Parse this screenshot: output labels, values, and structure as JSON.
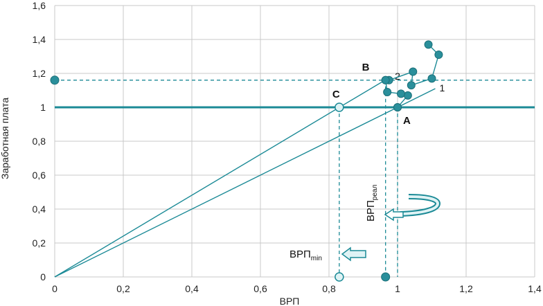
{
  "chart_data": {
    "type": "line",
    "title": "",
    "xlabel": "ВРП",
    "ylabel": "Заработная плата",
    "xlim": [
      0,
      1.4
    ],
    "ylim": [
      0,
      1.6
    ],
    "x_ticks": [
      "0",
      "0,2",
      "0,4",
      "0,6",
      "0,8",
      "1",
      "1,2",
      "1,4"
    ],
    "y_ticks": [
      "0",
      "0,2",
      "0,4",
      "0,6",
      "0,8",
      "1",
      "1,2",
      "1,4",
      "1,6"
    ],
    "grid": true,
    "colors": {
      "main": "#1b8a96",
      "point_fill": "#2a8f9b",
      "light_fill": "#dff3f5",
      "grid": "#c8c8c8"
    },
    "horizontal_lines": [
      {
        "y": 1.0,
        "style": "solid"
      },
      {
        "y": 1.16,
        "style": "dashed"
      }
    ],
    "vertical_dashed": [
      {
        "x": 0.83,
        "y_top": 1.0
      },
      {
        "x": 0.965,
        "y_top": 1.16
      },
      {
        "x": 1.0,
        "y_top": 1.0
      }
    ],
    "series": [
      {
        "type": "trajectory",
        "points": [
          {
            "x": 1.0,
            "y": 1.0
          },
          {
            "x": 1.03,
            "y": 1.07
          },
          {
            "x": 1.01,
            "y": 1.08
          },
          {
            "x": 0.97,
            "y": 1.09
          },
          {
            "x": 0.965,
            "y": 1.16
          },
          {
            "x": 0.975,
            "y": 1.16
          },
          {
            "x": 1.045,
            "y": 1.21
          },
          {
            "x": 1.04,
            "y": 1.13
          },
          {
            "x": 1.1,
            "y": 1.17
          },
          {
            "x": 1.12,
            "y": 1.31
          },
          {
            "x": 1.09,
            "y": 1.37
          }
        ]
      }
    ],
    "rays": [
      {
        "label": "1",
        "from": {
          "x": 0,
          "y": 0
        },
        "to": {
          "x": 1.11,
          "y": 1.11
        }
      },
      {
        "label": "2",
        "from": {
          "x": 0,
          "y": 0
        },
        "to": {
          "x": 0.98,
          "y": 1.18
        }
      }
    ],
    "special_points": [
      {
        "label": "A",
        "x": 1.0,
        "y": 1.0
      },
      {
        "label": "B",
        "x": 0.965,
        "y": 1.16
      },
      {
        "label": "C",
        "x": 0.83,
        "y": 1.0
      }
    ],
    "axis_points": [
      {
        "x": 0,
        "y": 1.16,
        "style": "filled"
      },
      {
        "x": 0.83,
        "y": 0,
        "style": "light"
      },
      {
        "x": 0.965,
        "y": 0,
        "style": "filled"
      }
    ],
    "annotations": {
      "vrp_min": {
        "base": "ВРП",
        "sub": "min"
      },
      "vrp_real": {
        "base": "ВРП",
        "sub": "реал"
      }
    }
  }
}
